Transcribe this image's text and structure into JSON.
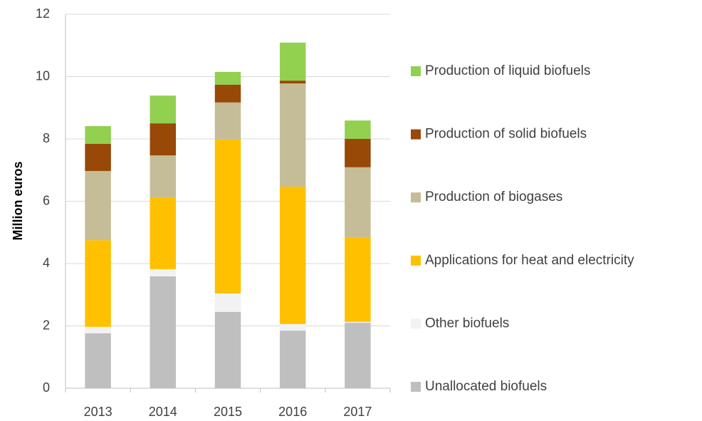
{
  "chart_data": {
    "type": "stacked_bar",
    "ylabel": "Million euros",
    "categories": [
      "2013",
      "2014",
      "2015",
      "2016",
      "2017"
    ],
    "series": [
      {
        "name": "Unallocated biofuels",
        "color": "#bfbfbf",
        "values": [
          1.76,
          3.59,
          2.45,
          1.85,
          2.1
        ]
      },
      {
        "name": "Other biofuels",
        "color": "#f2f2f2",
        "values": [
          0.21,
          0.23,
          0.59,
          0.21,
          0.03
        ]
      },
      {
        "name": "Applications for heat and electricity",
        "color": "#ffc000",
        "values": [
          2.78,
          2.31,
          4.94,
          4.41,
          2.72
        ]
      },
      {
        "name": "Production of biogases",
        "color": "#c4bd97",
        "values": [
          2.22,
          1.34,
          1.19,
          3.31,
          2.24
        ]
      },
      {
        "name": "Production of solid biofuels",
        "color": "#984807",
        "values": [
          0.87,
          1.03,
          0.57,
          0.09,
          0.91
        ]
      },
      {
        "name": "Production of liquid biofuels",
        "color": "#92d050",
        "values": [
          0.57,
          0.89,
          0.41,
          1.22,
          0.59
        ]
      }
    ],
    "ylim": [
      0,
      12
    ],
    "yticks": [
      0,
      2,
      4,
      6,
      8,
      10,
      12
    ],
    "grid": true,
    "legend": "right"
  }
}
